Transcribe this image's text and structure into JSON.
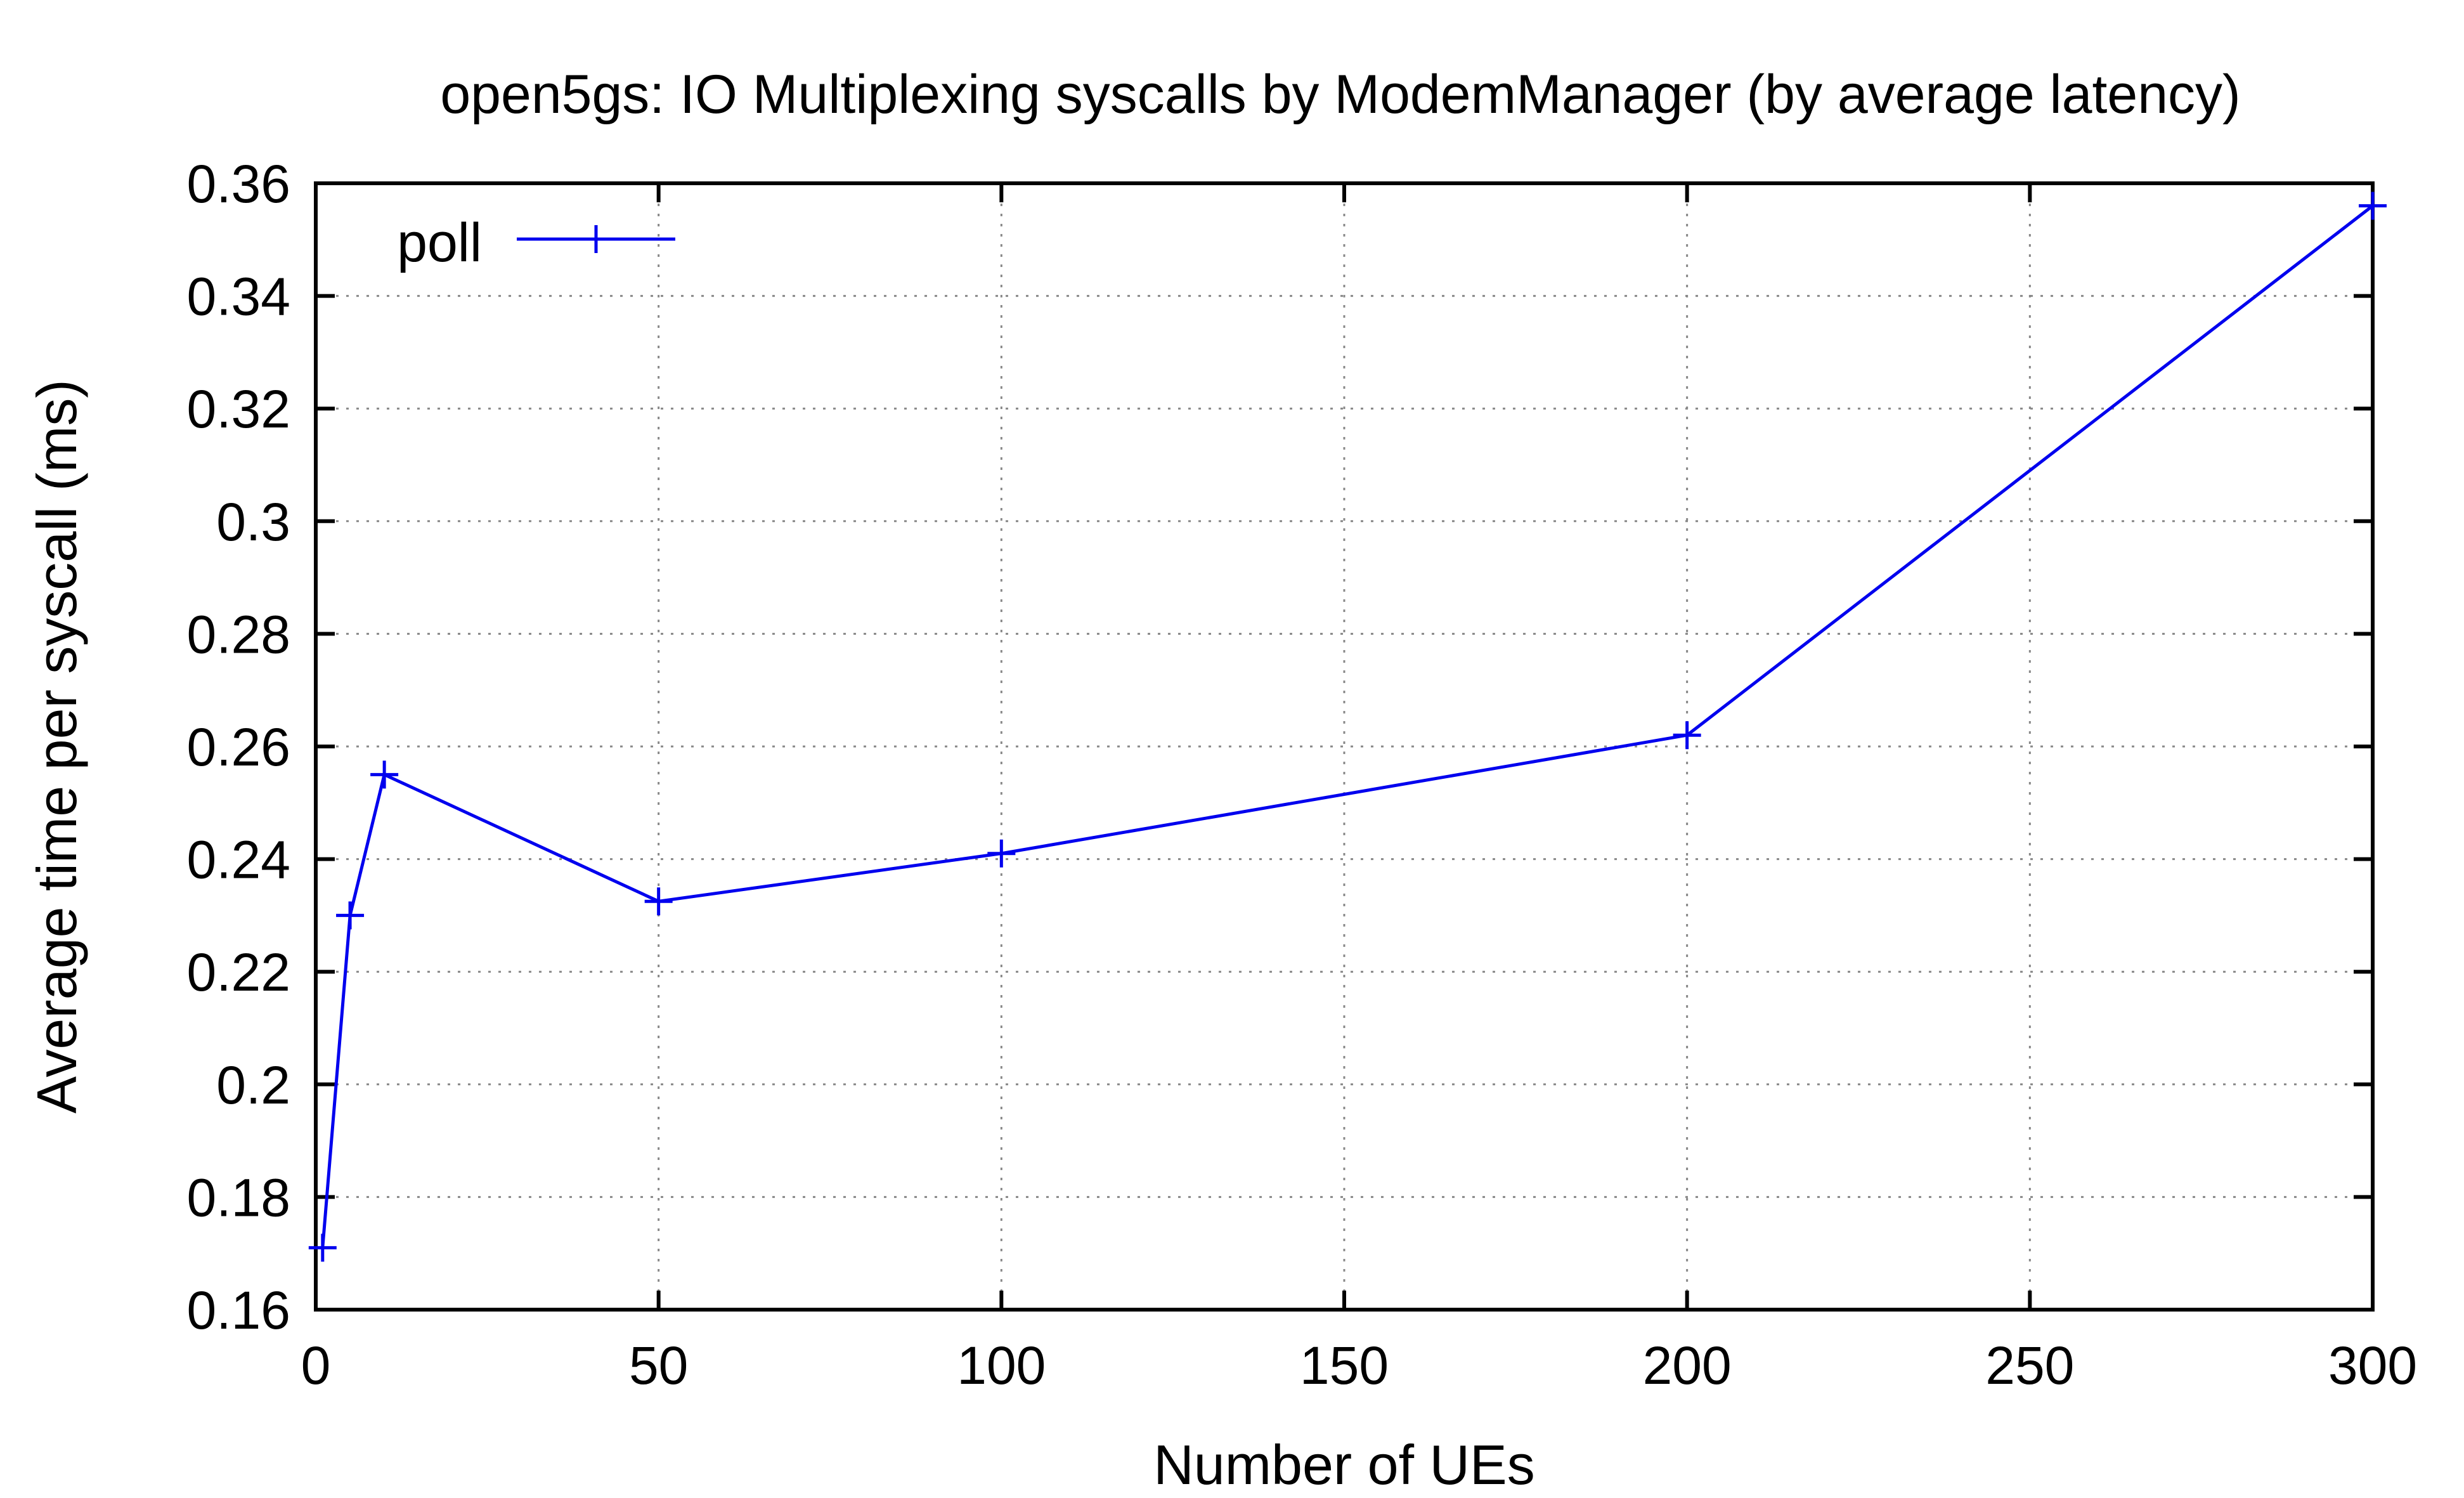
{
  "chart_data": {
    "type": "line",
    "title": "open5gs: IO Multiplexing syscalls by ModemManager (by average latency)",
    "xlabel": "Number of UEs",
    "ylabel": "Average time per syscall (ms)",
    "xlim": [
      0,
      300
    ],
    "ylim": [
      0.16,
      0.36
    ],
    "xticks": [
      0,
      50,
      100,
      150,
      200,
      250,
      300
    ],
    "xtick_labels": [
      "0",
      "50",
      "100",
      "150",
      "200",
      "250",
      "300"
    ],
    "yticks": [
      0.16,
      0.18,
      0.2,
      0.22,
      0.24,
      0.26,
      0.28,
      0.3,
      0.32,
      0.34,
      0.36
    ],
    "ytick_labels": [
      "0.16",
      "0.18",
      "0.2",
      "0.22",
      "0.24",
      "0.26",
      "0.28",
      "0.3",
      "0.32",
      "0.34",
      "0.36"
    ],
    "grid": true,
    "legend_position": "top-left",
    "series": [
      {
        "name": "poll",
        "color": "#0000ee",
        "marker": "plus",
        "x": [
          1,
          5,
          10,
          50,
          100,
          200,
          300
        ],
        "y": [
          0.171,
          0.23,
          0.255,
          0.2325,
          0.241,
          0.262,
          0.356
        ]
      }
    ]
  }
}
